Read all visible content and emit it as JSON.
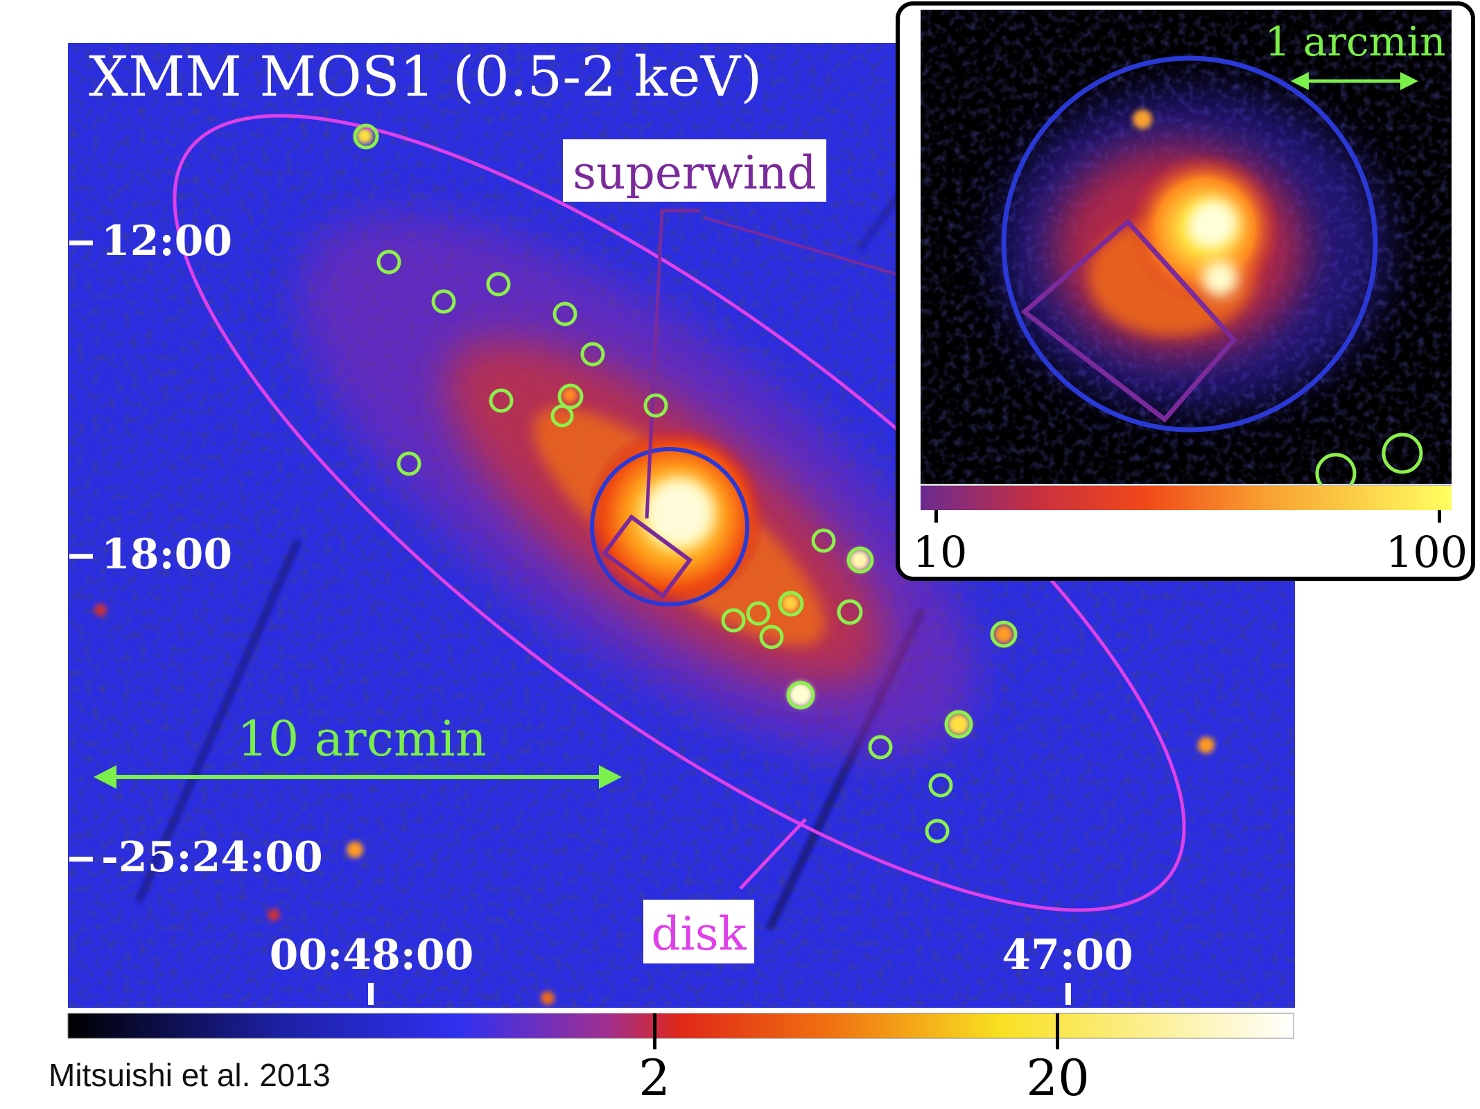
{
  "image": {
    "title": "XMM MOS1 (0.5-2 keV)",
    "credit": "Mitsuishi et al. 2013"
  },
  "labels": {
    "superwind": "superwind",
    "disk": "disk",
    "scale_main": "10 arcmin",
    "scale_inset": "1 arcmin"
  },
  "axes": {
    "dec_ticks": [
      "12:00",
      "18:00",
      "-25:24:00"
    ],
    "ra_ticks": [
      "00:48:00",
      "47:00"
    ]
  },
  "colorbars": {
    "main": {
      "ticks": [
        "2",
        "20"
      ]
    },
    "inset": {
      "ticks": [
        "10",
        "100"
      ]
    }
  },
  "colors": {
    "background_sky": "#2b2ee0",
    "disk_ellipse": "#e040e8",
    "source_circles": "#8cf04a",
    "extraction_circle": "#2a39d6",
    "superwind_box": "#7a2a9a",
    "scale_arrows": "#7cf04a"
  }
}
